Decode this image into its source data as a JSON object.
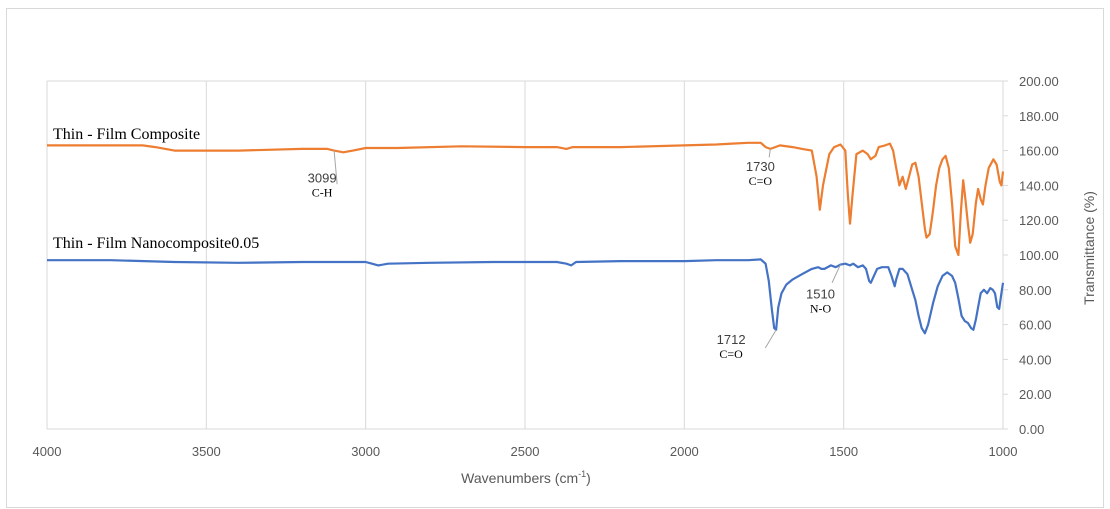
{
  "chart_data": {
    "type": "line",
    "title": "",
    "xlabel": "Wavenumbers (cm",
    "xlabel_sup": "-1",
    "xlabel_end": ")",
    "ylabel": "Transmittance (%)",
    "xlim": [
      4000,
      1000
    ],
    "x_reversed": true,
    "ylim": [
      0,
      200
    ],
    "x_ticks": [
      "4000",
      "3500",
      "3000",
      "2500",
      "2000",
      "1500",
      "1000"
    ],
    "y_ticks": [
      "0.00",
      "20.00",
      "40.00",
      "60.00",
      "80.00",
      "100.00",
      "120.00",
      "140.00",
      "160.00",
      "180.00",
      "200.00"
    ],
    "grid": "vertical",
    "legend": "none",
    "series": [
      {
        "name": "Thin - Film Composite",
        "color": "#ED7D31",
        "points": [
          [
            4000,
            163
          ],
          [
            3800,
            163
          ],
          [
            3700,
            163
          ],
          [
            3660,
            162
          ],
          [
            3600,
            160
          ],
          [
            3400,
            160
          ],
          [
            3200,
            161
          ],
          [
            3120,
            161
          ],
          [
            3099,
            160
          ],
          [
            3070,
            159
          ],
          [
            3040,
            160
          ],
          [
            3000,
            161.5
          ],
          [
            2900,
            161.5
          ],
          [
            2700,
            162.5
          ],
          [
            2500,
            162
          ],
          [
            2400,
            162
          ],
          [
            2370,
            161
          ],
          [
            2350,
            162
          ],
          [
            2200,
            162
          ],
          [
            2000,
            163
          ],
          [
            1900,
            163.5
          ],
          [
            1850,
            164
          ],
          [
            1800,
            164.5
          ],
          [
            1760,
            164.5
          ],
          [
            1745,
            162
          ],
          [
            1730,
            161
          ],
          [
            1715,
            162
          ],
          [
            1700,
            163
          ],
          [
            1660,
            162
          ],
          [
            1630,
            161
          ],
          [
            1600,
            160
          ],
          [
            1585,
            145
          ],
          [
            1575,
            126
          ],
          [
            1565,
            140
          ],
          [
            1545,
            158
          ],
          [
            1530,
            162
          ],
          [
            1510,
            163.5
          ],
          [
            1495,
            160
          ],
          [
            1487,
            135
          ],
          [
            1480,
            118
          ],
          [
            1472,
            135
          ],
          [
            1460,
            158
          ],
          [
            1440,
            160
          ],
          [
            1425,
            158
          ],
          [
            1415,
            155
          ],
          [
            1400,
            157
          ],
          [
            1390,
            162
          ],
          [
            1370,
            163
          ],
          [
            1355,
            164
          ],
          [
            1345,
            160
          ],
          [
            1335,
            150
          ],
          [
            1325,
            140
          ],
          [
            1315,
            145
          ],
          [
            1305,
            138
          ],
          [
            1295,
            145
          ],
          [
            1285,
            152
          ],
          [
            1275,
            153
          ],
          [
            1265,
            145
          ],
          [
            1255,
            130
          ],
          [
            1245,
            115
          ],
          [
            1240,
            110
          ],
          [
            1230,
            112
          ],
          [
            1220,
            125
          ],
          [
            1210,
            140
          ],
          [
            1200,
            150
          ],
          [
            1190,
            155
          ],
          [
            1180,
            157
          ],
          [
            1170,
            150
          ],
          [
            1160,
            130
          ],
          [
            1150,
            105
          ],
          [
            1140,
            100
          ],
          [
            1132,
            125
          ],
          [
            1125,
            143
          ],
          [
            1118,
            132
          ],
          [
            1110,
            118
          ],
          [
            1103,
            107
          ],
          [
            1095,
            112
          ],
          [
            1085,
            130
          ],
          [
            1078,
            138
          ],
          [
            1070,
            132
          ],
          [
            1063,
            129
          ],
          [
            1055,
            140
          ],
          [
            1045,
            150
          ],
          [
            1030,
            155
          ],
          [
            1020,
            152
          ],
          [
            1010,
            142
          ],
          [
            1005,
            140
          ],
          [
            1000,
            148
          ]
        ]
      },
      {
        "name": "Thin - Film Nanocomposite0.05",
        "color": "#4472C4",
        "points": [
          [
            4000,
            97
          ],
          [
            3800,
            97
          ],
          [
            3600,
            96
          ],
          [
            3400,
            95.5
          ],
          [
            3200,
            96
          ],
          [
            3000,
            96
          ],
          [
            2980,
            95
          ],
          [
            2960,
            94
          ],
          [
            2930,
            95
          ],
          [
            2800,
            95.5
          ],
          [
            2600,
            96
          ],
          [
            2400,
            96
          ],
          [
            2370,
            95
          ],
          [
            2355,
            94
          ],
          [
            2340,
            96
          ],
          [
            2200,
            96.5
          ],
          [
            2000,
            96.5
          ],
          [
            1900,
            97
          ],
          [
            1800,
            97
          ],
          [
            1760,
            97.5
          ],
          [
            1745,
            95
          ],
          [
            1735,
            85
          ],
          [
            1725,
            68
          ],
          [
            1718,
            58
          ],
          [
            1712,
            57
          ],
          [
            1705,
            70
          ],
          [
            1695,
            78
          ],
          [
            1680,
            83
          ],
          [
            1660,
            86
          ],
          [
            1630,
            89
          ],
          [
            1600,
            92
          ],
          [
            1580,
            93
          ],
          [
            1570,
            92
          ],
          [
            1560,
            92
          ],
          [
            1540,
            94
          ],
          [
            1525,
            93
          ],
          [
            1510,
            94.5
          ],
          [
            1495,
            95
          ],
          [
            1480,
            94
          ],
          [
            1470,
            95
          ],
          [
            1455,
            93
          ],
          [
            1440,
            94
          ],
          [
            1430,
            92
          ],
          [
            1420,
            85
          ],
          [
            1415,
            84
          ],
          [
            1405,
            88
          ],
          [
            1395,
            92
          ],
          [
            1380,
            93
          ],
          [
            1360,
            93
          ],
          [
            1350,
            88
          ],
          [
            1340,
            82
          ],
          [
            1335,
            86
          ],
          [
            1325,
            92
          ],
          [
            1315,
            92
          ],
          [
            1300,
            89
          ],
          [
            1285,
            80
          ],
          [
            1275,
            74
          ],
          [
            1265,
            65
          ],
          [
            1255,
            58
          ],
          [
            1245,
            55
          ],
          [
            1235,
            60
          ],
          [
            1220,
            72
          ],
          [
            1205,
            82
          ],
          [
            1190,
            88
          ],
          [
            1175,
            90
          ],
          [
            1160,
            88
          ],
          [
            1150,
            84
          ],
          [
            1140,
            75
          ],
          [
            1130,
            65
          ],
          [
            1120,
            62
          ],
          [
            1110,
            61
          ],
          [
            1100,
            58
          ],
          [
            1093,
            57
          ],
          [
            1085,
            63
          ],
          [
            1078,
            70
          ],
          [
            1070,
            78
          ],
          [
            1060,
            80
          ],
          [
            1050,
            78
          ],
          [
            1040,
            81
          ],
          [
            1032,
            80
          ],
          [
            1025,
            78
          ],
          [
            1018,
            70
          ],
          [
            1012,
            69
          ],
          [
            1005,
            78
          ],
          [
            1000,
            84
          ]
        ]
      }
    ],
    "annotations": [
      {
        "value": "3099",
        "group": "C-H",
        "x": 3099,
        "y": 160,
        "series": 0
      },
      {
        "value": "1730",
        "group": "C=O",
        "x": 1730,
        "y": 161,
        "series": 0
      },
      {
        "value": "1712",
        "group": "C=O",
        "x": 1712,
        "y": 57,
        "series": 1
      },
      {
        "value": "1510",
        "group": "N-O",
        "x": 1510,
        "y": 94.5,
        "series": 1
      }
    ]
  },
  "axis_color": "#d9d9d9",
  "grid_color": "#d9d9d9",
  "leader_color": "#a6a6a6"
}
